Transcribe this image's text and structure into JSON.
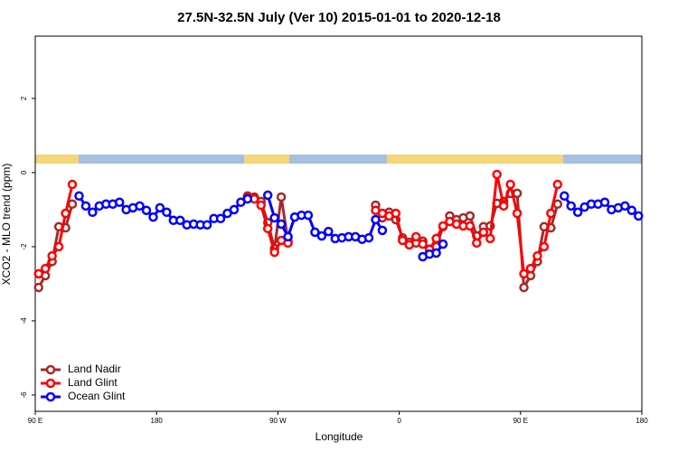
{
  "chart_data": {
    "type": "line",
    "title": "27.5N-32.5N July (Ver 10)   2015-01-01 to 2020-12-18",
    "x_label": "Longitude",
    "y_label": "XCO2 - MLO trend (ppm)",
    "xlim": [
      90,
      540
    ],
    "ylim": [
      -6.44,
      3.68
    ],
    "xticks": [
      {
        "value": 90,
        "label": "90 E"
      },
      180,
      {
        "value": 270,
        "label": "90 W"
      },
      {
        "value": 360,
        "label": "0"
      },
      {
        "value": 450,
        "label": "90 E"
      },
      {
        "value": 540,
        "label": "180"
      }
    ],
    "yticks": [
      -6,
      -4,
      -2,
      0,
      2
    ],
    "legend": "bottom-left",
    "series": [
      {
        "name": "Land Nadir",
        "color": "#a52a2a",
        "x": [
          92.5,
          97.5,
          102.5,
          107.5,
          112.5,
          117.5,
          null,
          247.5,
          252.5,
          257.5,
          262.5,
          267.5,
          272.5,
          277.5,
          null,
          342.5,
          347.5,
          352.5,
          357.5,
          362.5,
          367.5,
          372.5,
          377.5,
          382.5,
          387.5,
          392.5,
          397.5,
          402.5,
          407.5,
          412.5,
          417.5,
          422.5,
          427.5,
          432.5,
          437.5,
          442.5,
          447.5,
          452.5,
          457.5,
          462.5,
          467.5,
          472.5,
          477.5
        ],
        "values": [
          -3.1,
          -2.78,
          -2.4,
          -1.46,
          -1.49,
          -0.85,
          null,
          -0.63,
          -0.66,
          -0.78,
          -1.35,
          -2.05,
          -0.66,
          -1.85,
          null,
          -0.88,
          -1.22,
          -1.07,
          -1.27,
          -1.76,
          -1.88,
          -1.9,
          -1.85,
          -2.15,
          -2.0,
          -1.46,
          -1.17,
          -1.27,
          -1.22,
          -1.17,
          -1.71,
          -1.46,
          -1.44,
          -0.83,
          -0.78,
          -0.56,
          -0.56,
          -3.1,
          -2.78,
          -2.4,
          -1.46,
          -1.49,
          -0.85
        ]
      },
      {
        "name": "Land Glint",
        "color": "#ff0000",
        "x": [
          92.5,
          97.5,
          102.5,
          107.5,
          112.5,
          117.5,
          null,
          247.5,
          252.5,
          257.5,
          262.5,
          267.5,
          272.5,
          277.5,
          null,
          342.5,
          347.5,
          352.5,
          357.5,
          362.5,
          367.5,
          372.5,
          377.5,
          382.5,
          387.5,
          392.5,
          397.5,
          402.5,
          407.5,
          412.5,
          417.5,
          422.5,
          427.5,
          432.5,
          437.5,
          442.5,
          447.5,
          452.5,
          457.5,
          462.5,
          467.5,
          472.5,
          477.5
        ],
        "values": [
          -2.73,
          -2.59,
          -2.25,
          -2.0,
          -1.1,
          -0.32,
          null,
          -0.66,
          -0.71,
          -0.88,
          -1.51,
          -2.15,
          -1.83,
          -1.9,
          null,
          -1.02,
          -1.1,
          -1.17,
          -1.1,
          -1.83,
          -1.95,
          -1.73,
          -1.93,
          -2.07,
          -1.78,
          -1.44,
          -1.32,
          -1.39,
          -1.44,
          -1.44,
          -1.9,
          -1.61,
          -1.78,
          -0.05,
          -0.9,
          -0.32,
          -1.1,
          -2.73,
          -2.59,
          -2.25,
          -2.0,
          -1.1,
          -0.32
        ]
      },
      {
        "name": "Ocean Glint",
        "color": "#0000ff",
        "x": [
          122.5,
          127.5,
          132.5,
          137.5,
          142.5,
          147.5,
          152.5,
          157.5,
          162.5,
          167.5,
          172.5,
          177.5,
          182.5,
          187.5,
          192.5,
          197.5,
          202.5,
          207.5,
          212.5,
          217.5,
          222.5,
          227.5,
          232.5,
          237.5,
          242.5,
          247.5,
          null,
          262.5,
          267.5,
          272.5,
          277.5,
          282.5,
          287.5,
          292.5,
          297.5,
          302.5,
          307.5,
          312.5,
          317.5,
          322.5,
          327.5,
          332.5,
          337.5,
          342.5,
          347.5,
          null,
          377.5,
          382.5,
          387.5,
          392.5,
          null,
          482.5,
          487.5,
          492.5,
          497.5,
          502.5,
          507.5,
          512.5,
          517.5,
          522.5,
          527.5,
          532.5,
          537.5
        ],
        "values": [
          -0.63,
          -0.9,
          -1.07,
          -0.9,
          -0.85,
          -0.85,
          -0.8,
          -1.0,
          -0.95,
          -0.9,
          -1.02,
          -1.2,
          -0.95,
          -1.07,
          -1.29,
          -1.29,
          -1.41,
          -1.39,
          -1.41,
          -1.41,
          -1.24,
          -1.24,
          -1.1,
          -1.0,
          -0.8,
          -0.71,
          null,
          -0.61,
          -1.22,
          -1.39,
          -1.73,
          -1.2,
          -1.15,
          -1.15,
          -1.61,
          -1.71,
          -1.59,
          -1.78,
          -1.76,
          -1.73,
          -1.73,
          -1.8,
          -1.76,
          -1.27,
          -1.56,
          null,
          -2.27,
          -2.2,
          -2.17,
          -1.93,
          null,
          -0.63,
          -0.9,
          -1.07,
          -0.93,
          -0.85,
          -0.85,
          -0.8,
          -1.0,
          -0.95,
          -0.9,
          -1.02,
          -1.17
        ]
      }
    ]
  }
}
